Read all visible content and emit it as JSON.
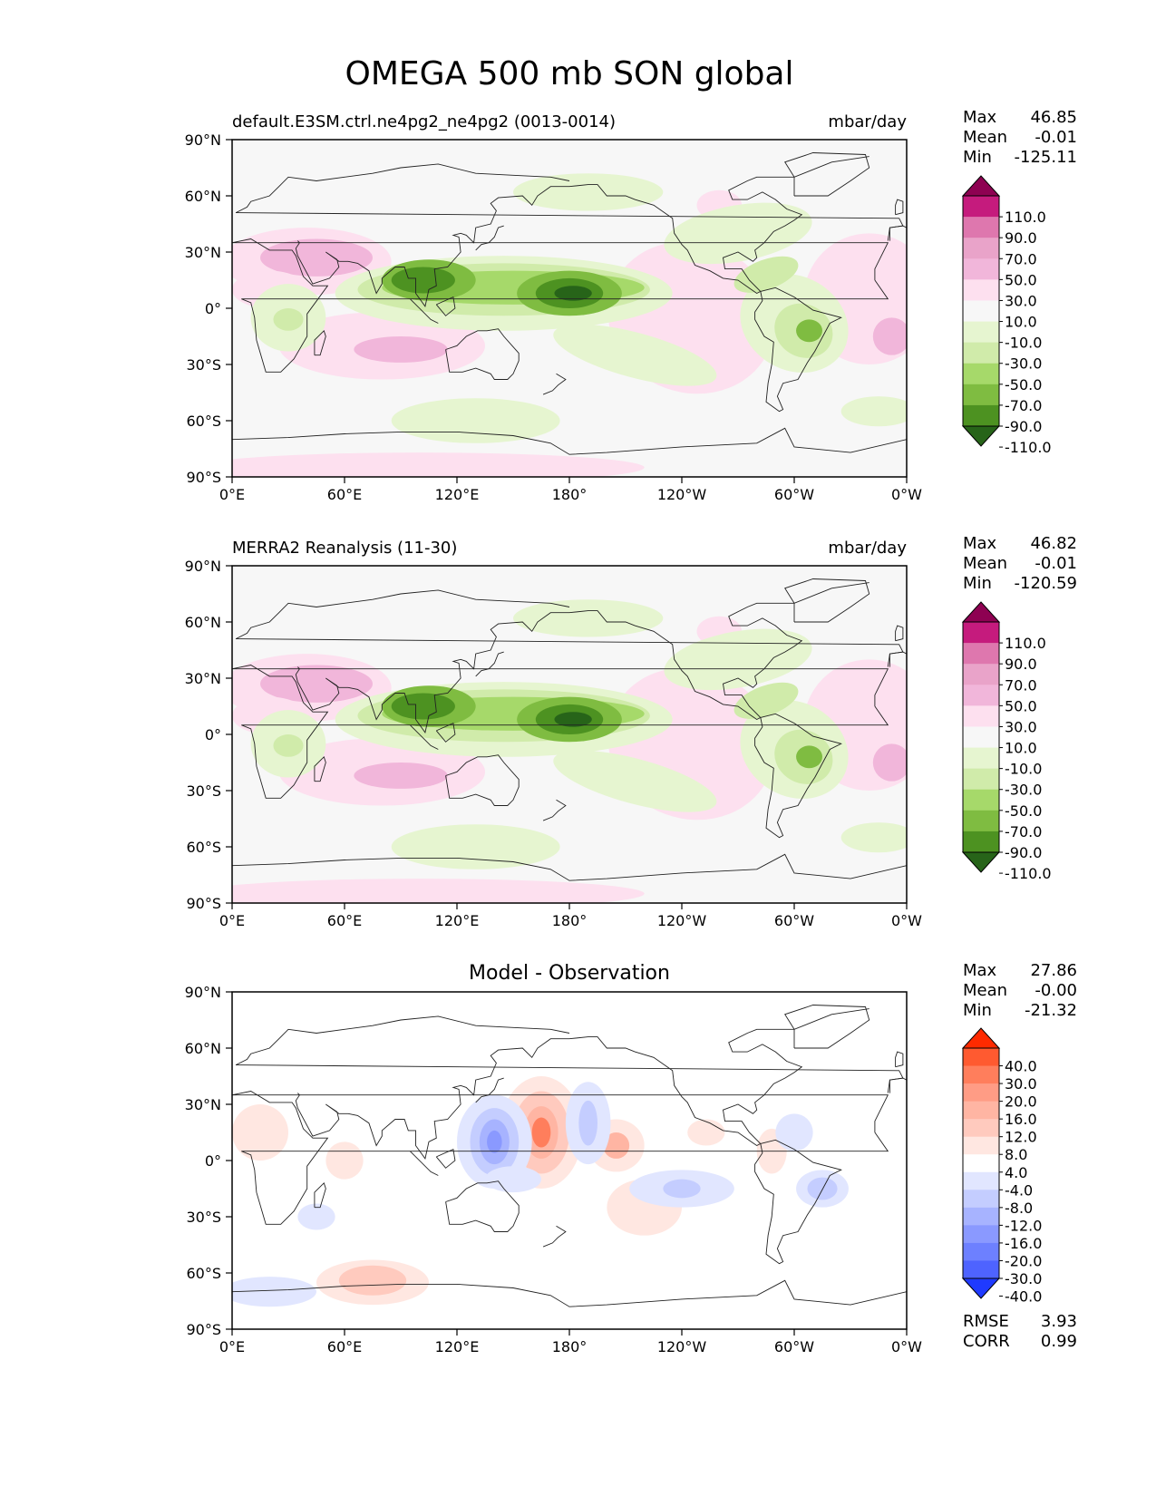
{
  "title": "OMEGA 500 mb SON global",
  "panels": [
    {
      "left_title": "default.E3SM.ctrl.ne4pg2_ne4pg2 (0013-0014)",
      "right_title": "mbar/day",
      "stats": [
        {
          "label": "Max",
          "value": "46.85"
        },
        {
          "label": "Mean",
          "value": "-0.01"
        },
        {
          "label": "Min",
          "value": "-125.11"
        }
      ],
      "colorbar": {
        "labels": [
          "110.0",
          "90.0",
          "70.0",
          "50.0",
          "30.0",
          "10.0",
          "-10.0",
          "-30.0",
          "-50.0",
          "-70.0",
          "-90.0",
          "-110.0"
        ],
        "colors": [
          "#8e0152",
          "#c51b7d",
          "#de77ae",
          "#e9a3c9",
          "#f1b6da",
          "#fde0ef",
          "#f7f7f7",
          "#e6f5d0",
          "#d0ebaa",
          "#a6d96a",
          "#7fbc41",
          "#4d9221",
          "#276419"
        ]
      }
    },
    {
      "left_title": "MERRA2 Reanalysis (11-30)",
      "right_title": "mbar/day",
      "stats": [
        {
          "label": "Max",
          "value": "46.82"
        },
        {
          "label": "Mean",
          "value": "-0.01"
        },
        {
          "label": "Min",
          "value": "-120.59"
        }
      ],
      "colorbar": {
        "labels": [
          "110.0",
          "90.0",
          "70.0",
          "50.0",
          "30.0",
          "10.0",
          "-10.0",
          "-30.0",
          "-50.0",
          "-70.0",
          "-90.0",
          "-110.0"
        ],
        "colors": [
          "#8e0152",
          "#c51b7d",
          "#de77ae",
          "#e9a3c9",
          "#f1b6da",
          "#fde0ef",
          "#f7f7f7",
          "#e6f5d0",
          "#d0ebaa",
          "#a6d96a",
          "#7fbc41",
          "#4d9221",
          "#276419"
        ]
      }
    },
    {
      "center_title": "Model - Observation",
      "stats": [
        {
          "label": "Max",
          "value": "27.86"
        },
        {
          "label": "Mean",
          "value": "-0.00"
        },
        {
          "label": "Min",
          "value": "-21.32"
        }
      ],
      "colorbar": {
        "labels": [
          "40.0",
          "30.0",
          "20.0",
          "16.0",
          "12.0",
          "8.0",
          "4.0",
          "-4.0",
          "-8.0",
          "-12.0",
          "-16.0",
          "-20.0",
          "-30.0",
          "-40.0"
        ],
        "colors": [
          "#ff2a00",
          "#ff5a30",
          "#ff7e5c",
          "#ff9c85",
          "#ffb5a3",
          "#ffcabe",
          "#ffe7e1",
          "#ffffff",
          "#e1e6ff",
          "#c4cdff",
          "#a7b3ff",
          "#8a99ff",
          "#6d80ff",
          "#4e63ff",
          "#1f3aff"
        ]
      },
      "footer_stats": [
        {
          "label": "RMSE",
          "value": "3.93"
        },
        {
          "label": "CORR",
          "value": "0.99"
        }
      ]
    }
  ],
  "axes": {
    "x_ticks": [
      "0°E",
      "60°E",
      "120°E",
      "180°",
      "120°W",
      "60°W",
      "0°W"
    ],
    "y_ticks": [
      "90°N",
      "60°N",
      "30°N",
      "0°",
      "30°S",
      "60°S",
      "90°S"
    ]
  },
  "chart_data": [
    {
      "type": "heatmap",
      "title": "default.E3SM.ctrl.ne4pg2_ne4pg2 (0013-0014)",
      "units": "mbar/day",
      "xlim": [
        0,
        360
      ],
      "ylim": [
        -90,
        90
      ],
      "stats": {
        "max": 46.85,
        "mean": -0.01,
        "min": -125.11
      },
      "levels": [
        -110,
        -90,
        -70,
        -50,
        -30,
        -10,
        10,
        30,
        50,
        70,
        90,
        110
      ],
      "features": [
        {
          "lon": 180,
          "lat": 8,
          "value": -125.11
        },
        {
          "lon": 100,
          "lat": 15,
          "value": -80
        },
        {
          "lon": 143,
          "lat": 12,
          "value": -70
        },
        {
          "lon": 305,
          "lat": -10,
          "value": -55
        },
        {
          "lon": 30,
          "lat": -5,
          "value": -40
        },
        {
          "lon": 45,
          "lat": 25,
          "value": 45
        },
        {
          "lon": 90,
          "lat": -20,
          "value": 30
        },
        {
          "lon": 350,
          "lat": -15,
          "value": 25
        },
        {
          "lon": 65,
          "lat": -62,
          "value": -20
        }
      ]
    },
    {
      "type": "heatmap",
      "title": "MERRA2 Reanalysis (11-30)",
      "units": "mbar/day",
      "xlim": [
        0,
        360
      ],
      "ylim": [
        -90,
        90
      ],
      "stats": {
        "max": 46.82,
        "mean": -0.01,
        "min": -120.59
      },
      "levels": [
        -110,
        -90,
        -70,
        -50,
        -30,
        -10,
        10,
        30,
        50,
        70,
        90,
        110
      ],
      "features": [
        {
          "lon": 180,
          "lat": 8,
          "value": -120.59
        },
        {
          "lon": 100,
          "lat": 15,
          "value": -80
        },
        {
          "lon": 150,
          "lat": 10,
          "value": -70
        },
        {
          "lon": 308,
          "lat": -10,
          "value": -50
        },
        {
          "lon": 30,
          "lat": -5,
          "value": -40
        },
        {
          "lon": 45,
          "lat": 25,
          "value": 45
        },
        {
          "lon": 75,
          "lat": -18,
          "value": 30
        },
        {
          "lon": 355,
          "lat": -15,
          "value": 25
        },
        {
          "lon": 70,
          "lat": -62,
          "value": -20
        }
      ]
    },
    {
      "type": "heatmap",
      "title": "Model - Observation",
      "xlim": [
        0,
        360
      ],
      "ylim": [
        -90,
        90
      ],
      "stats": {
        "max": 27.86,
        "mean": -0.0,
        "min": -21.32
      },
      "rmse": 3.93,
      "corr": 0.99,
      "levels": [
        -40,
        -30,
        -20,
        -16,
        -12,
        -8,
        -4,
        4,
        8,
        12,
        16,
        20,
        30,
        40
      ],
      "features": [
        {
          "lon": 165,
          "lat": 15,
          "value": 27.86
        },
        {
          "lon": 140,
          "lat": 10,
          "value": -21.32
        },
        {
          "lon": 190,
          "lat": 20,
          "value": -14
        },
        {
          "lon": 205,
          "lat": 8,
          "value": 12
        },
        {
          "lon": 240,
          "lat": -15,
          "value": -12
        },
        {
          "lon": 315,
          "lat": -15,
          "value": -14
        },
        {
          "lon": 75,
          "lat": -65,
          "value": 14
        },
        {
          "lon": 20,
          "lat": -70,
          "value": -6
        },
        {
          "lon": 15,
          "lat": 15,
          "value": 6
        },
        {
          "lon": 290,
          "lat": 5,
          "value": 7
        }
      ]
    }
  ]
}
